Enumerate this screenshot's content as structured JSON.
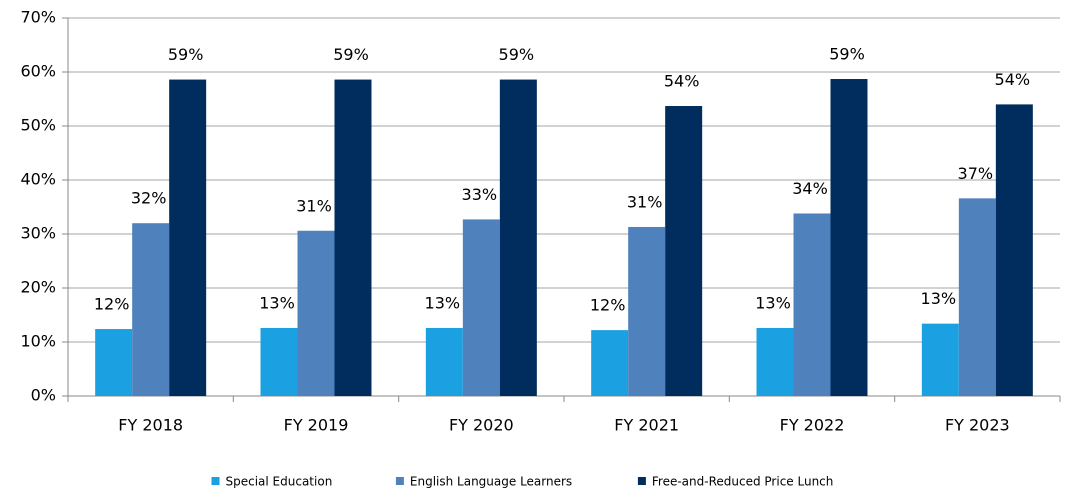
{
  "chart_data": {
    "type": "bar",
    "categories": [
      "FY 2018",
      "FY 2019",
      "FY 2020",
      "FY 2021",
      "FY 2022",
      "FY 2023"
    ],
    "series": [
      {
        "name": "Special Education",
        "color": "#1ba1e2",
        "values": [
          12.4,
          12.6,
          12.6,
          12.2,
          12.6,
          13.4
        ],
        "value_labels": [
          "12%",
          "13%",
          "13%",
          "12%",
          "13%",
          "13%"
        ]
      },
      {
        "name": "English Language Learners",
        "color": "#4f81bd",
        "values": [
          32.0,
          30.6,
          32.7,
          31.3,
          33.8,
          36.6
        ],
        "value_labels": [
          "32%",
          "31%",
          "33%",
          "31%",
          "34%",
          "37%"
        ]
      },
      {
        "name": "Free-and-Reduced Price Lunch",
        "color": "#002d5e",
        "values": [
          58.6,
          58.6,
          58.6,
          53.7,
          58.7,
          54.0
        ],
        "value_labels": [
          "59%",
          "59%",
          "59%",
          "54%",
          "59%",
          "54%"
        ]
      }
    ],
    "ylim": [
      0,
      70
    ],
    "yticks": [
      {
        "value": 0,
        "label": "0%"
      },
      {
        "value": 10,
        "label": "10%"
      },
      {
        "value": 20,
        "label": "20%"
      },
      {
        "value": 30,
        "label": "30%"
      },
      {
        "value": 40,
        "label": "40%"
      },
      {
        "value": 50,
        "label": "50%"
      },
      {
        "value": 60,
        "label": "60%"
      },
      {
        "value": 70,
        "label": "70%"
      }
    ],
    "grid": true,
    "legend": "bottom"
  }
}
